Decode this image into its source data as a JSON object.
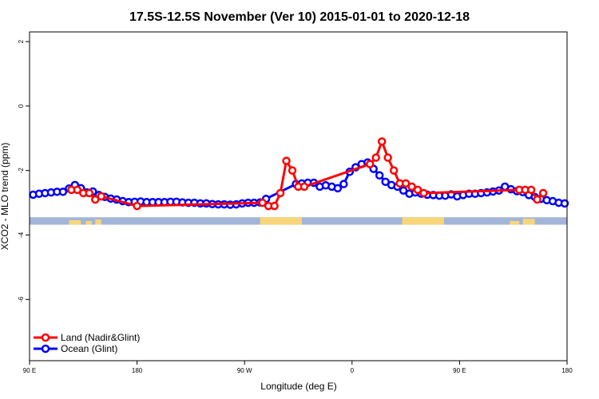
{
  "chart_data": {
    "type": "line",
    "title": "17.5S-12.5S November (Ver 10)   2015-01-01 to 2020-12-18",
    "xlabel": "Longitude (deg E)",
    "ylabel": "XCO2 - MLO trend (ppm)",
    "x_ticks": [
      {
        "value": 90,
        "label": "90 E"
      },
      {
        "value": 180,
        "label": "180"
      },
      {
        "value": 270,
        "label": "90 W"
      },
      {
        "value": 360,
        "label": "0"
      },
      {
        "value": 450,
        "label": "90 E"
      },
      {
        "value": 540,
        "label": "180"
      }
    ],
    "y_ticks": [
      {
        "value": 2,
        "label": "2"
      },
      {
        "value": 0,
        "label": "0"
      },
      {
        "value": -2,
        "label": "-2"
      },
      {
        "value": -4,
        "label": "-4"
      },
      {
        "value": -6,
        "label": "-6"
      }
    ],
    "xlim": [
      90,
      540
    ],
    "ylim": [
      -7.9,
      2.3
    ],
    "grid": false,
    "legend_position": "bottom-left",
    "series": [
      {
        "name": "Land (Nadir&Glint)",
        "color": "#ff0000",
        "x": [
          125,
          130,
          135,
          140,
          145,
          150,
          180,
          285,
          290,
          295,
          300,
          305,
          310,
          315,
          320,
          375,
          380,
          385,
          390,
          395,
          400,
          405,
          410,
          415,
          420,
          500,
          505,
          510,
          515,
          520
        ],
        "y": [
          -2.6,
          -2.6,
          -2.7,
          -2.7,
          -2.9,
          -2.8,
          -3.1,
          -3.0,
          -3.1,
          -3.1,
          -2.7,
          -1.7,
          -2.0,
          -2.5,
          -2.5,
          -1.8,
          -1.6,
          -1.1,
          -1.6,
          -2.0,
          -2.4,
          -2.4,
          -2.5,
          -2.6,
          -2.7,
          -2.6,
          -2.6,
          -2.6,
          -2.9,
          -2.7
        ]
      },
      {
        "name": "Ocean (Glint)",
        "color": "#0000ff",
        "x": [
          93,
          98,
          103,
          108,
          113,
          118,
          123,
          128,
          133,
          138,
          143,
          148,
          153,
          158,
          163,
          168,
          173,
          178,
          183,
          188,
          193,
          198,
          203,
          208,
          213,
          218,
          223,
          228,
          233,
          238,
          243,
          248,
          253,
          258,
          263,
          268,
          273,
          278,
          283,
          288,
          313,
          318,
          323,
          328,
          333,
          338,
          343,
          348,
          353,
          358,
          363,
          368,
          373,
          378,
          383,
          388,
          393,
          398,
          403,
          408,
          413,
          418,
          423,
          428,
          433,
          438,
          443,
          448,
          453,
          458,
          463,
          468,
          473,
          478,
          483,
          488,
          493,
          498,
          503,
          508,
          513,
          518,
          523,
          528,
          533,
          538
        ],
        "y": [
          -2.75,
          -2.72,
          -2.7,
          -2.68,
          -2.66,
          -2.66,
          -2.56,
          -2.45,
          -2.55,
          -2.68,
          -2.65,
          -2.76,
          -2.82,
          -2.87,
          -2.9,
          -2.95,
          -2.98,
          -2.97,
          -2.96,
          -2.98,
          -2.98,
          -2.98,
          -2.98,
          -2.97,
          -2.97,
          -2.99,
          -3.0,
          -3.0,
          -3.02,
          -3.02,
          -3.04,
          -3.05,
          -3.05,
          -3.06,
          -3.05,
          -3.02,
          -3.0,
          -3.0,
          -2.99,
          -2.88,
          -2.42,
          -2.4,
          -2.38,
          -2.38,
          -2.5,
          -2.46,
          -2.5,
          -2.55,
          -2.42,
          -2.04,
          -1.9,
          -1.8,
          -1.75,
          -1.95,
          -2.15,
          -2.35,
          -2.45,
          -2.5,
          -2.62,
          -2.72,
          -2.68,
          -2.72,
          -2.75,
          -2.76,
          -2.78,
          -2.78,
          -2.74,
          -2.8,
          -2.76,
          -2.72,
          -2.72,
          -2.7,
          -2.68,
          -2.65,
          -2.62,
          -2.5,
          -2.58,
          -2.64,
          -2.67,
          -2.76,
          -2.82,
          -2.88,
          -2.92,
          -2.95,
          -3.0,
          -3.02
        ]
      }
    ],
    "surface_strip": {
      "y_top": -3.45,
      "y_bottom": -3.68,
      "ocean_color": "#a2b5d8",
      "land_color": "#f9d57a",
      "land_segments": [
        {
          "x0": 123,
          "x1": 133,
          "height": 0.6
        },
        {
          "x0": 137,
          "x1": 142,
          "height": 0.5
        },
        {
          "x0": 145,
          "x1": 150,
          "height": 0.7
        },
        {
          "x0": 283,
          "x1": 318,
          "height": 1.0
        },
        {
          "x0": 402,
          "x1": 437,
          "height": 1.0
        },
        {
          "x0": 492,
          "x1": 500,
          "height": 0.5
        },
        {
          "x0": 503,
          "x1": 513,
          "height": 0.8
        }
      ]
    }
  }
}
